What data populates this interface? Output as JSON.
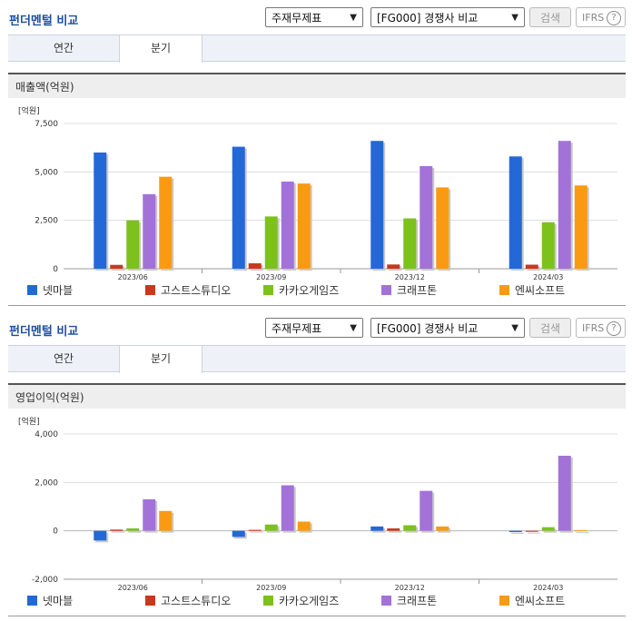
{
  "panels": [
    {
      "title": "펀더멘털 비교",
      "select1": "주재무제표",
      "select2": "[FG000] 경쟁사 비교",
      "search_label": "검색",
      "ifrs_label": "IFRS",
      "ifrs_help": "?",
      "tabs": [
        "연간",
        "분기"
      ],
      "active_tab": "분기",
      "chart_title": "매출액(억원)",
      "unit": "[억원]"
    },
    {
      "title": "펀더멘털 비교",
      "select1": "주재무제표",
      "select2": "[FG000] 경쟁사 비교",
      "search_label": "검색",
      "ifrs_label": "IFRS",
      "ifrs_help": "?",
      "tabs": [
        "연간",
        "분기"
      ],
      "active_tab": "분기",
      "chart_title": "영업이익(억원)",
      "unit": "[억원]"
    }
  ],
  "chart_data": [
    {
      "type": "bar",
      "title": "매출액(억원)",
      "ylabel": "[억원]",
      "categories": [
        "2023/06",
        "2023/09",
        "2023/12",
        "2024/03"
      ],
      "ylim": [
        0,
        7500
      ],
      "yticks": [
        0,
        2500,
        5000,
        7500
      ],
      "ytick_labels": [
        "0",
        "2,500",
        "5,000",
        "7,500"
      ],
      "legend_position": "bottom",
      "series": [
        {
          "name": "넷마블",
          "color": "#2468d8",
          "values": [
            6000,
            6300,
            6600,
            5800
          ]
        },
        {
          "name": "고스트스튜디오",
          "color": "#c8391b",
          "values": [
            200,
            280,
            220,
            210
          ]
        },
        {
          "name": "카카오게임즈",
          "color": "#7cc11c",
          "values": [
            2500,
            2700,
            2600,
            2400
          ]
        },
        {
          "name": "크래프톤",
          "color": "#a372d8",
          "values": [
            3850,
            4500,
            5300,
            6600
          ]
        },
        {
          "name": "엔씨소프트",
          "color": "#f99a12",
          "values": [
            4750,
            4400,
            4200,
            4300
          ]
        }
      ]
    },
    {
      "type": "bar",
      "title": "영업이익(억원)",
      "ylabel": "[억원]",
      "categories": [
        "2023/06",
        "2023/09",
        "2023/12",
        "2024/03"
      ],
      "ylim": [
        -2000,
        4000
      ],
      "yticks": [
        -2000,
        0,
        2000,
        4000
      ],
      "ytick_labels": [
        "-2,000",
        "0",
        "2,000",
        "4,000"
      ],
      "legend_position": "bottom",
      "series": [
        {
          "name": "넷마블",
          "color": "#2468d8",
          "values": [
            -400,
            -250,
            180,
            -50
          ]
        },
        {
          "name": "고스트스튜디오",
          "color": "#c8391b",
          "values": [
            50,
            40,
            100,
            -40
          ]
        },
        {
          "name": "카카오게임즈",
          "color": "#7cc11c",
          "values": [
            100,
            260,
            230,
            150
          ]
        },
        {
          "name": "크래프톤",
          "color": "#a372d8",
          "values": [
            1300,
            1880,
            1650,
            3100
          ]
        },
        {
          "name": "엔씨소프트",
          "color": "#f99a12",
          "values": [
            820,
            380,
            180,
            20
          ]
        }
      ]
    }
  ]
}
